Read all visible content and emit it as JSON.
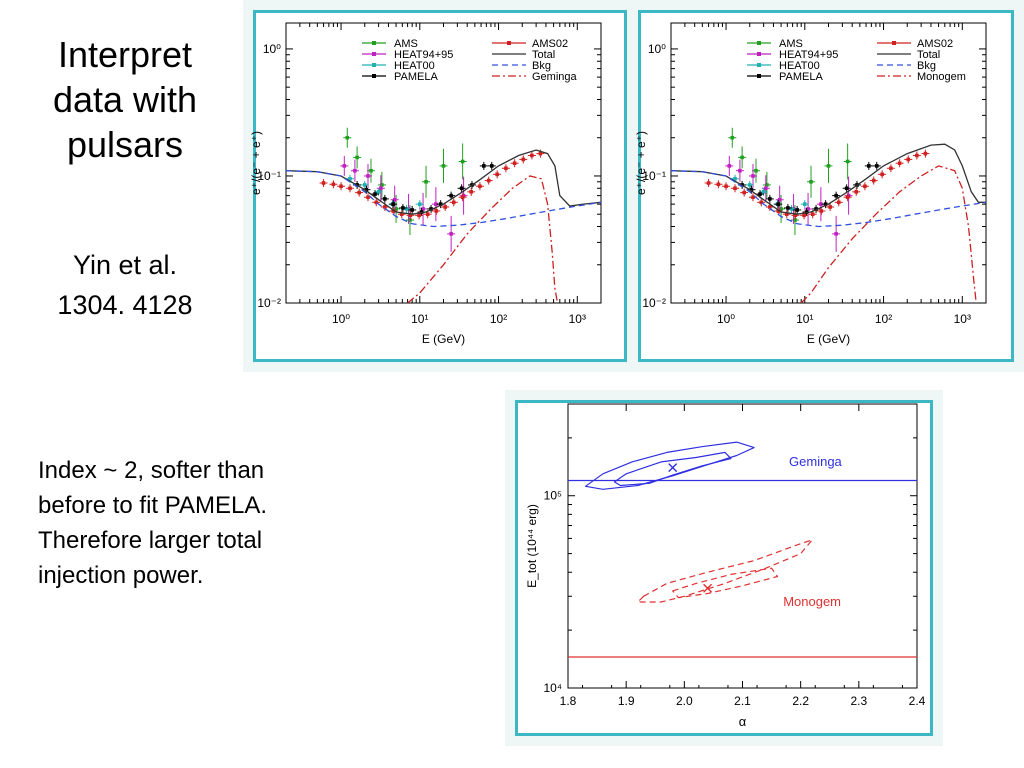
{
  "slide": {
    "title_lines": [
      "Interpret",
      "data with",
      "pulsars"
    ],
    "reference_lines": [
      "Yin et al.",
      "1304. 4128"
    ],
    "note_lines": [
      "Index ~ 2, softer than",
      "before to fit PAMELA.",
      "Therefore larger total",
      "injection power."
    ]
  },
  "colors": {
    "frame": "#3cb8c4",
    "ams": "#20a020",
    "heat9495": "#c020c0",
    "heat00": "#20b0b0",
    "pamela": "#000000",
    "ams02": "#d02020",
    "total": "#333333",
    "bkg": "#3050e0",
    "pulsar": "#d02020",
    "geminga": "#3030e0",
    "monogem": "#e03030"
  },
  "chart_data": [
    {
      "type": "line",
      "xlabel": "E (GeV)",
      "ylabel": "e⁺/(e⁻ + e⁺)",
      "xscale": "log",
      "yscale": "log",
      "xlim": [
        0.2,
        2000
      ],
      "ylim": [
        0.01,
        1.6
      ],
      "xticks": [
        "10⁰",
        "10¹",
        "10²",
        "10³"
      ],
      "yticks": [
        "10⁰",
        "10⁻¹",
        "10⁻²"
      ],
      "legend_left": [
        "AMS",
        "HEAT94+95",
        "HEAT00",
        "PAMELA"
      ],
      "legend_right": [
        "AMS02",
        "Total",
        "Bkg",
        "Geminga"
      ],
      "series": [
        {
          "name": "AMS",
          "kind": "points",
          "x": [
            1.2,
            1.6,
            2.4,
            3.3,
            5.0,
            7.5,
            12,
            20,
            35
          ],
          "y": [
            0.2,
            0.14,
            0.11,
            0.085,
            0.055,
            0.045,
            0.09,
            0.12,
            0.13
          ]
        },
        {
          "name": "HEAT94+95",
          "kind": "points",
          "x": [
            1.1,
            1.5,
            2.2,
            3.2,
            4.8,
            7.2,
            11,
            16,
            25,
            36
          ],
          "y": [
            0.12,
            0.11,
            0.1,
            0.08,
            0.065,
            0.055,
            0.055,
            0.06,
            0.035,
            0.07
          ]
        },
        {
          "name": "HEAT00",
          "kind": "points",
          "x": [
            1.3,
            2.0,
            3.0,
            4.5,
            6.8,
            10
          ],
          "y": [
            0.095,
            0.085,
            0.075,
            0.06,
            0.055,
            0.06
          ]
        },
        {
          "name": "PAMELA",
          "kind": "points",
          "x": [
            1.6,
            2.1,
            2.7,
            3.6,
            4.6,
            6.1,
            8.0,
            10.5,
            13.9,
            18.4,
            25,
            34,
            46,
            65,
            82
          ],
          "y": [
            0.085,
            0.078,
            0.072,
            0.066,
            0.06,
            0.056,
            0.054,
            0.052,
            0.055,
            0.06,
            0.07,
            0.08,
            0.085,
            0.12,
            0.12
          ]
        },
        {
          "name": "AMS02",
          "kind": "points",
          "x": [
            0.6,
            0.8,
            1.0,
            1.3,
            1.7,
            2.2,
            2.8,
            3.6,
            4.6,
            5.9,
            7.6,
            9.8,
            12.6,
            16.2,
            21,
            27,
            35,
            45,
            58,
            75,
            96,
            124,
            160,
            206,
            265,
            340
          ],
          "y": [
            0.088,
            0.086,
            0.083,
            0.08,
            0.074,
            0.068,
            0.062,
            0.057,
            0.053,
            0.05,
            0.049,
            0.049,
            0.05,
            0.053,
            0.057,
            0.062,
            0.068,
            0.075,
            0.083,
            0.092,
            0.103,
            0.115,
            0.126,
            0.135,
            0.145,
            0.15
          ]
        },
        {
          "name": "Total",
          "kind": "line",
          "x": [
            0.2,
            0.5,
            1,
            2,
            3,
            5,
            8,
            12,
            20,
            35,
            60,
            100,
            180,
            300,
            420,
            520,
            600,
            800,
            1200,
            2000
          ],
          "y": [
            0.11,
            0.108,
            0.1,
            0.078,
            0.065,
            0.052,
            0.05,
            0.052,
            0.06,
            0.075,
            0.095,
            0.12,
            0.145,
            0.16,
            0.15,
            0.12,
            0.07,
            0.058,
            0.06,
            0.062
          ]
        },
        {
          "name": "Bkg",
          "kind": "dashed",
          "x": [
            0.2,
            0.5,
            1,
            2,
            3,
            5,
            8,
            15,
            30,
            60,
            120,
            250,
            500,
            1000,
            2000
          ],
          "y": [
            0.11,
            0.108,
            0.1,
            0.075,
            0.06,
            0.048,
            0.042,
            0.04,
            0.041,
            0.043,
            0.046,
            0.05,
            0.054,
            0.058,
            0.062
          ]
        },
        {
          "name": "Geminga",
          "kind": "dashdot",
          "x": [
            7,
            10,
            20,
            40,
            80,
            150,
            250,
            350,
            420,
            480,
            520,
            560
          ],
          "y": [
            0.01,
            0.012,
            0.02,
            0.035,
            0.055,
            0.08,
            0.1,
            0.095,
            0.06,
            0.025,
            0.013,
            0.01
          ]
        }
      ]
    },
    {
      "type": "line",
      "xlabel": "E (GeV)",
      "ylabel": "e⁺/(e⁻ + e⁺)",
      "xscale": "log",
      "yscale": "log",
      "xlim": [
        0.2,
        2000
      ],
      "ylim": [
        0.01,
        1.6
      ],
      "xticks": [
        "10⁰",
        "10¹",
        "10²",
        "10³"
      ],
      "yticks": [
        "10⁰",
        "10⁻¹",
        "10⁻²"
      ],
      "legend_left": [
        "AMS",
        "HEAT94+95",
        "HEAT00",
        "PAMELA"
      ],
      "legend_right": [
        "AMS02",
        "Total",
        "Bkg",
        "Monogem"
      ],
      "series": [
        {
          "name": "AMS",
          "kind": "points",
          "x": [
            1.2,
            1.6,
            2.4,
            3.3,
            5.0,
            7.5,
            12,
            20,
            35
          ],
          "y": [
            0.2,
            0.14,
            0.11,
            0.085,
            0.055,
            0.045,
            0.09,
            0.12,
            0.13
          ]
        },
        {
          "name": "HEAT94+95",
          "kind": "points",
          "x": [
            1.1,
            1.5,
            2.2,
            3.2,
            4.8,
            7.2,
            11,
            16,
            25,
            36
          ],
          "y": [
            0.12,
            0.11,
            0.1,
            0.08,
            0.065,
            0.055,
            0.055,
            0.06,
            0.035,
            0.07
          ]
        },
        {
          "name": "HEAT00",
          "kind": "points",
          "x": [
            1.3,
            2.0,
            3.0,
            4.5,
            6.8,
            10
          ],
          "y": [
            0.095,
            0.085,
            0.075,
            0.06,
            0.055,
            0.06
          ]
        },
        {
          "name": "PAMELA",
          "kind": "points",
          "x": [
            1.6,
            2.1,
            2.7,
            3.6,
            4.6,
            6.1,
            8.0,
            10.5,
            13.9,
            18.4,
            25,
            34,
            46,
            65,
            82
          ],
          "y": [
            0.085,
            0.078,
            0.072,
            0.066,
            0.06,
            0.056,
            0.054,
            0.052,
            0.055,
            0.06,
            0.07,
            0.08,
            0.085,
            0.12,
            0.12
          ]
        },
        {
          "name": "AMS02",
          "kind": "points",
          "x": [
            0.6,
            0.8,
            1.0,
            1.3,
            1.7,
            2.2,
            2.8,
            3.6,
            4.6,
            5.9,
            7.6,
            9.8,
            12.6,
            16.2,
            21,
            27,
            35,
            45,
            58,
            75,
            96,
            124,
            160,
            206,
            265,
            340
          ],
          "y": [
            0.088,
            0.086,
            0.083,
            0.08,
            0.074,
            0.068,
            0.062,
            0.057,
            0.053,
            0.05,
            0.049,
            0.049,
            0.05,
            0.053,
            0.057,
            0.062,
            0.068,
            0.075,
            0.083,
            0.092,
            0.103,
            0.115,
            0.126,
            0.135,
            0.145,
            0.15
          ]
        },
        {
          "name": "Total",
          "kind": "line",
          "x": [
            0.2,
            0.5,
            1,
            2,
            3,
            5,
            8,
            12,
            20,
            35,
            60,
            100,
            200,
            400,
            600,
            800,
            1000,
            1300,
            1600,
            2000
          ],
          "y": [
            0.11,
            0.108,
            0.1,
            0.078,
            0.065,
            0.052,
            0.05,
            0.052,
            0.06,
            0.075,
            0.095,
            0.12,
            0.15,
            0.175,
            0.178,
            0.16,
            0.12,
            0.075,
            0.062,
            0.062
          ]
        },
        {
          "name": "Bkg",
          "kind": "dashed",
          "x": [
            0.2,
            0.5,
            1,
            2,
            3,
            5,
            8,
            15,
            30,
            60,
            120,
            250,
            500,
            1000,
            2000
          ],
          "y": [
            0.11,
            0.108,
            0.1,
            0.075,
            0.06,
            0.048,
            0.042,
            0.04,
            0.041,
            0.043,
            0.046,
            0.05,
            0.054,
            0.058,
            0.062
          ]
        },
        {
          "name": "Monogem",
          "kind": "dashdot",
          "x": [
            9,
            12,
            20,
            40,
            80,
            160,
            300,
            500,
            800,
            1000,
            1200,
            1400,
            1500
          ],
          "y": [
            0.01,
            0.012,
            0.019,
            0.032,
            0.05,
            0.075,
            0.1,
            0.12,
            0.11,
            0.08,
            0.04,
            0.015,
            0.01
          ]
        }
      ]
    },
    {
      "type": "contour",
      "xlabel": "α",
      "ylabel": "E_tot (10⁴⁴ erg)",
      "xscale": "linear",
      "yscale": "log",
      "xlim": [
        1.8,
        2.4
      ],
      "ylim": [
        10000,
        300000
      ],
      "xticks": [
        1.8,
        1.9,
        2.0,
        2.1,
        2.2,
        2.3,
        2.4
      ],
      "yticks": [
        "10⁴",
        "10⁵"
      ],
      "series": [
        {
          "name": "Geminga",
          "best_fit": [
            1.98,
            140000
          ],
          "line": 120000,
          "inner": [
            [
              1.88,
              118000
            ],
            [
              1.9,
              130000
            ],
            [
              1.96,
              150000
            ],
            [
              2.02,
              158000
            ],
            [
              2.07,
              168000
            ],
            [
              2.08,
              156000
            ],
            [
              2.03,
              143000
            ],
            [
              1.98,
              128000
            ],
            [
              1.94,
              116000
            ],
            [
              1.89,
              113000
            ]
          ],
          "outer": [
            [
              1.83,
              112000
            ],
            [
              1.86,
              130000
            ],
            [
              1.91,
              150000
            ],
            [
              1.97,
              168000
            ],
            [
              2.03,
              180000
            ],
            [
              2.09,
              190000
            ],
            [
              2.12,
              178000
            ],
            [
              2.09,
              162000
            ],
            [
              2.04,
              145000
            ],
            [
              1.98,
              127000
            ],
            [
              1.92,
              113000
            ],
            [
              1.86,
              108000
            ]
          ]
        },
        {
          "name": "Monogem",
          "best_fit": [
            2.04,
            33000
          ],
          "line": 14500,
          "inner": [
            [
              1.98,
              32000
            ],
            [
              2.02,
              35000
            ],
            [
              2.08,
              39000
            ],
            [
              2.15,
              42000
            ],
            [
              2.16,
              38000
            ],
            [
              2.1,
              34000
            ],
            [
              2.04,
              31000
            ],
            [
              1.99,
              29500
            ]
          ],
          "outer": [
            [
              1.93,
              30000
            ],
            [
              1.97,
              35000
            ],
            [
              2.04,
              40000
            ],
            [
              2.12,
              46000
            ],
            [
              2.19,
              55000
            ],
            [
              2.22,
              59000
            ],
            [
              2.2,
              50000
            ],
            [
              2.14,
              42000
            ],
            [
              2.07,
              35000
            ],
            [
              2.0,
              30000
            ],
            [
              1.96,
              28000
            ],
            [
              1.92,
              28000
            ]
          ]
        }
      ]
    }
  ]
}
